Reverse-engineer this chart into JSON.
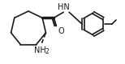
{
  "bg_color": "#ffffff",
  "line_color": "#1a1a1a",
  "line_width": 1.2,
  "bond_color": "#1a1a1a",
  "text_color": "#1a1a1a",
  "nh_label": "HN",
  "o_label": "O",
  "nh2_label": "NH",
  "h2_label": "2",
  "ch3_stub_color": "#1a1a1a"
}
